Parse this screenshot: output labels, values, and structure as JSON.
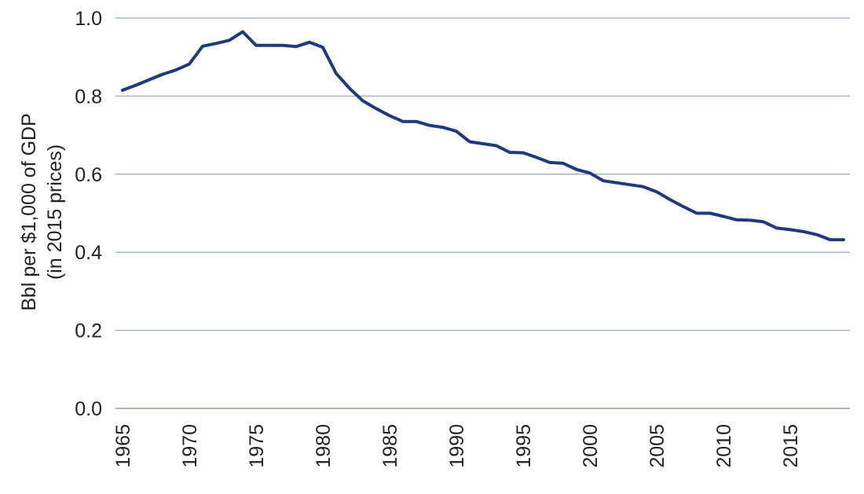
{
  "chart_data": {
    "type": "line",
    "title": "",
    "xlabel": "",
    "ylabel_lines": [
      "Bbl per $1,000 of GDP",
      "(in 2015 prices)"
    ],
    "xlim": [
      1965,
      2019
    ],
    "ylim": [
      0,
      1.0
    ],
    "yticks": [
      0.0,
      0.2,
      0.4,
      0.6,
      0.8,
      1.0
    ],
    "ytick_labels": [
      "0.0",
      "0.2",
      "0.4",
      "0.6",
      "0.8",
      "1.0"
    ],
    "xticks": [
      1965,
      1970,
      1975,
      1980,
      1985,
      1990,
      1995,
      2000,
      2005,
      2010,
      2015
    ],
    "xtick_labels": [
      "1965",
      "1970",
      "1975",
      "1980",
      "1985",
      "1990",
      "1995",
      "2000",
      "2005",
      "2010",
      "2015"
    ],
    "grid": true,
    "line_color": "#1f3a7a",
    "grid_color": "#a9b4c2",
    "series": [
      {
        "x": [
          1965,
          1966,
          1967,
          1968,
          1969,
          1970,
          1971,
          1972,
          1973,
          1974,
          1975,
          1976,
          1977,
          1978,
          1979,
          1980,
          1981,
          1982,
          1983,
          1984,
          1985,
          1986,
          1987,
          1988,
          1989,
          1990,
          1991,
          1992,
          1993,
          1994,
          1995,
          1996,
          1997,
          1998,
          1999,
          2000,
          2001,
          2002,
          2003,
          2004,
          2005,
          2006,
          2007,
          2008,
          2009,
          2010,
          2011,
          2012,
          2013,
          2014,
          2015,
          2016,
          2017,
          2018,
          2019
        ],
        "values": [
          0.815,
          0.828,
          0.842,
          0.856,
          0.867,
          0.882,
          0.928,
          0.935,
          0.943,
          0.965,
          0.93,
          0.93,
          0.93,
          0.927,
          0.938,
          0.925,
          0.858,
          0.82,
          0.788,
          0.768,
          0.75,
          0.735,
          0.735,
          0.725,
          0.72,
          0.71,
          0.683,
          0.678,
          0.673,
          0.656,
          0.655,
          0.643,
          0.63,
          0.628,
          0.612,
          0.603,
          0.583,
          0.578,
          0.573,
          0.568,
          0.555,
          0.535,
          0.517,
          0.5,
          0.5,
          0.492,
          0.483,
          0.482,
          0.478,
          0.462,
          0.458,
          0.453,
          0.445,
          0.432,
          0.432
        ]
      }
    ]
  }
}
